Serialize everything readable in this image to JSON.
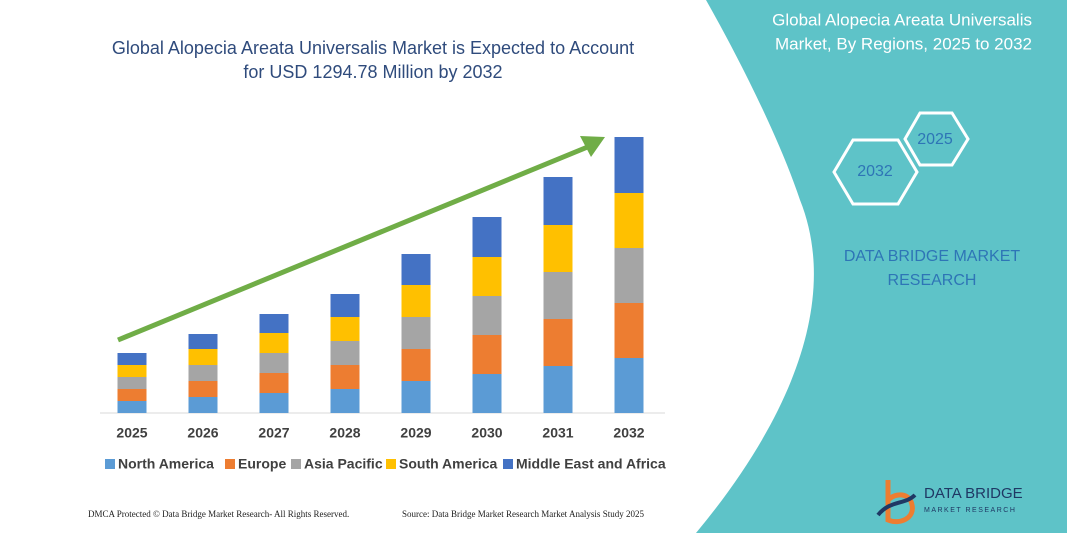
{
  "chart_data": {
    "type": "stacked-bar",
    "title": [
      "Global Alopecia Areata Universalis Market is Expected to Account",
      "for USD 1294.78 Million by 2032"
    ],
    "categories": [
      "2025",
      "2026",
      "2027",
      "2028",
      "2029",
      "2030",
      "2031",
      "2032"
    ],
    "series": [
      {
        "name": "North America",
        "color": "#5b9bd5",
        "values": [
          12,
          16,
          20,
          24,
          32,
          39,
          47,
          55
        ]
      },
      {
        "name": "Europe",
        "color": "#ed7d31",
        "values": [
          12,
          16,
          20,
          24,
          32,
          39,
          47,
          55
        ]
      },
      {
        "name": "Asia Pacific",
        "color": "#a5a5a5",
        "values": [
          12,
          16,
          20,
          24,
          32,
          39,
          47,
          55
        ]
      },
      {
        "name": "South America",
        "color": "#ffc000",
        "values": [
          12,
          16,
          20,
          24,
          32,
          39,
          47,
          55
        ]
      },
      {
        "name": "Middle East and Africa",
        "color": "#4472c4",
        "values": [
          12,
          15,
          19,
          23,
          31,
          40,
          48,
          56
        ]
      }
    ]
  },
  "panel": {
    "title": [
      "Global Alopecia Areata Universalis",
      "Market, By Regions, 2025 to 2032"
    ],
    "hex_start": "2025",
    "hex_end": "2032",
    "brand": [
      "DATA BRIDGE MARKET",
      "RESEARCH"
    ]
  },
  "footer": {
    "left": "DMCA Protected © Data Bridge Market Research-  All Rights Reserved.",
    "source": "Source: Data Bridge Market Research  Market Analysis Study 2025"
  },
  "logo": {
    "name": "DATA BRIDGE",
    "tagline": "MARKET RESEARCH"
  }
}
